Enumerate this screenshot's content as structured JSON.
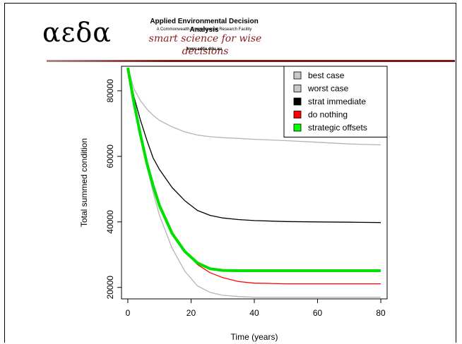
{
  "header": {
    "logo_greek": "αεδα",
    "org_name": "Applied Environmental Decision Analysis",
    "org_sub": "A Commonwealth Environmental Research Facility",
    "tagline": "smart science for wise decisions",
    "url": "www.aeda.edu.au"
  },
  "colors": {
    "rule": "#7a1a1a",
    "tagline": "#8b1a1a"
  },
  "chart_data": {
    "type": "line",
    "title": "",
    "xlabel": "Time (years)",
    "ylabel": "Total summed condition",
    "xlim": [
      -2,
      82
    ],
    "ylim": [
      16500,
      87500
    ],
    "xticks": [
      0,
      20,
      40,
      60,
      80
    ],
    "yticks": [
      20000,
      40000,
      60000,
      80000
    ],
    "grid": false,
    "legend_position": "top-right",
    "series": [
      {
        "name": "best case",
        "legend_swatch": "#c8c8c8",
        "line_color": "#b4b4b4",
        "line_width": 1.3,
        "x": [
          0,
          2,
          4,
          6,
          8,
          10,
          14,
          18,
          22,
          26,
          30,
          35,
          40,
          50,
          60,
          70,
          80
        ],
        "y": [
          87000,
          76000,
          66000,
          57000,
          49000,
          42000,
          32000,
          25000,
          20500,
          18500,
          17600,
          17200,
          17000,
          17000,
          17000,
          17000,
          17000
        ]
      },
      {
        "name": "worst case",
        "legend_swatch": "#c8c8c8",
        "line_color": "#b4b4b4",
        "line_width": 1.3,
        "x": [
          0,
          2,
          4,
          6,
          8,
          10,
          14,
          18,
          22,
          26,
          30,
          35,
          40,
          50,
          60,
          70,
          80
        ],
        "y": [
          87000,
          80500,
          77000,
          74500,
          72500,
          71000,
          69000,
          67500,
          66500,
          66000,
          65700,
          65500,
          65200,
          64800,
          64300,
          63800,
          63500
        ]
      },
      {
        "name": "strat immediate",
        "legend_swatch": "#000000",
        "line_color": "#000000",
        "line_width": 1.3,
        "x": [
          0,
          2,
          4,
          6,
          8,
          10,
          14,
          18,
          22,
          26,
          30,
          35,
          40,
          50,
          60,
          70,
          80
        ],
        "y": [
          87000,
          78000,
          71000,
          65000,
          59500,
          56000,
          50500,
          46500,
          43500,
          42000,
          41200,
          40700,
          40400,
          40100,
          40000,
          39900,
          39800
        ]
      },
      {
        "name": "do nothing",
        "legend_swatch": "#ff0000",
        "line_color": "#ff0000",
        "line_width": 1.3,
        "x": [
          0,
          2,
          4,
          6,
          8,
          10,
          14,
          18,
          22,
          26,
          30,
          35,
          40,
          50,
          60,
          70,
          80
        ],
        "y": [
          87000,
          76500,
          67000,
          58500,
          51500,
          45500,
          37000,
          31000,
          27000,
          24500,
          23000,
          21800,
          21300,
          21100,
          21100,
          21100,
          21100
        ]
      },
      {
        "name": "strategic offsets",
        "legend_swatch": "#00ff00",
        "line_color": "#00e000",
        "line_width": 4,
        "x": [
          0,
          2,
          4,
          6,
          8,
          10,
          14,
          18,
          22,
          26,
          30,
          35,
          40,
          50,
          60,
          70,
          80
        ],
        "y": [
          87000,
          76000,
          66500,
          58000,
          51000,
          45000,
          36500,
          31000,
          27500,
          25700,
          25200,
          25100,
          25100,
          25100,
          25100,
          25100,
          25100
        ]
      }
    ]
  }
}
